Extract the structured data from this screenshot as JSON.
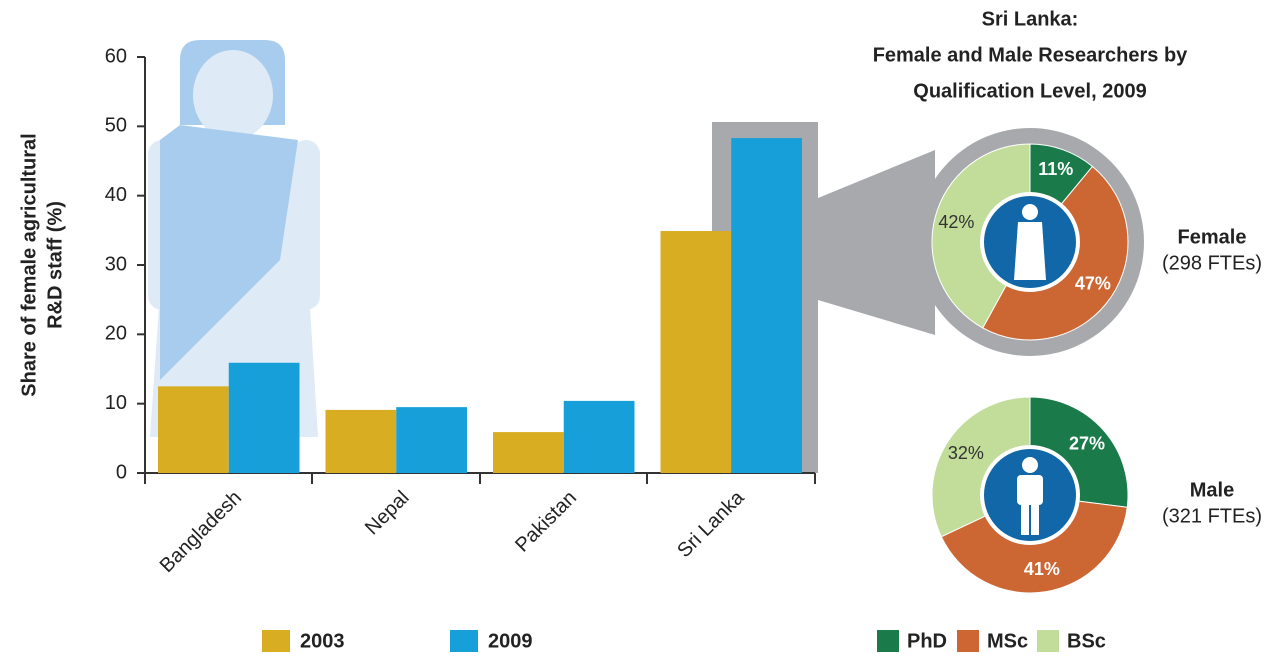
{
  "chart_data": [
    {
      "type": "bar",
      "ylabel": [
        "Share of female agricultural",
        "R&D staff (%)"
      ],
      "categories": [
        "Bangladesh",
        "Nepal",
        "Pakistan",
        "Sri Lanka"
      ],
      "series": [
        {
          "name": "2003",
          "color": "#d9ad22",
          "values": [
            12.5,
            9.1,
            5.9,
            34.9
          ]
        },
        {
          "name": "2009",
          "color": "#169fd8",
          "values": [
            15.9,
            9.5,
            10.4,
            48.3
          ]
        }
      ],
      "ylim": [
        0,
        60
      ],
      "yticks": [
        0,
        10,
        20,
        30,
        40,
        50,
        60
      ],
      "grid": false
    },
    {
      "type": "pie",
      "title": [
        "Sri Lanka:",
        "Female and Male Researchers by",
        "Qualification Level,  2009"
      ],
      "categories": [
        "PhD",
        "MSc",
        "BSc"
      ],
      "colors": [
        "#1a7a4a",
        "#cc6633",
        "#c2dc9a"
      ],
      "series": [
        {
          "name": "Female",
          "subtitle": "(298 FTEs)",
          "values": [
            11,
            47,
            42
          ],
          "value_labels": [
            "11%",
            "47%",
            "42%"
          ]
        },
        {
          "name": "Male",
          "subtitle": "(321 FTEs)",
          "values": [
            27,
            41,
            32
          ],
          "value_labels": [
            "27%",
            "41%",
            "32%"
          ]
        }
      ]
    }
  ]
}
